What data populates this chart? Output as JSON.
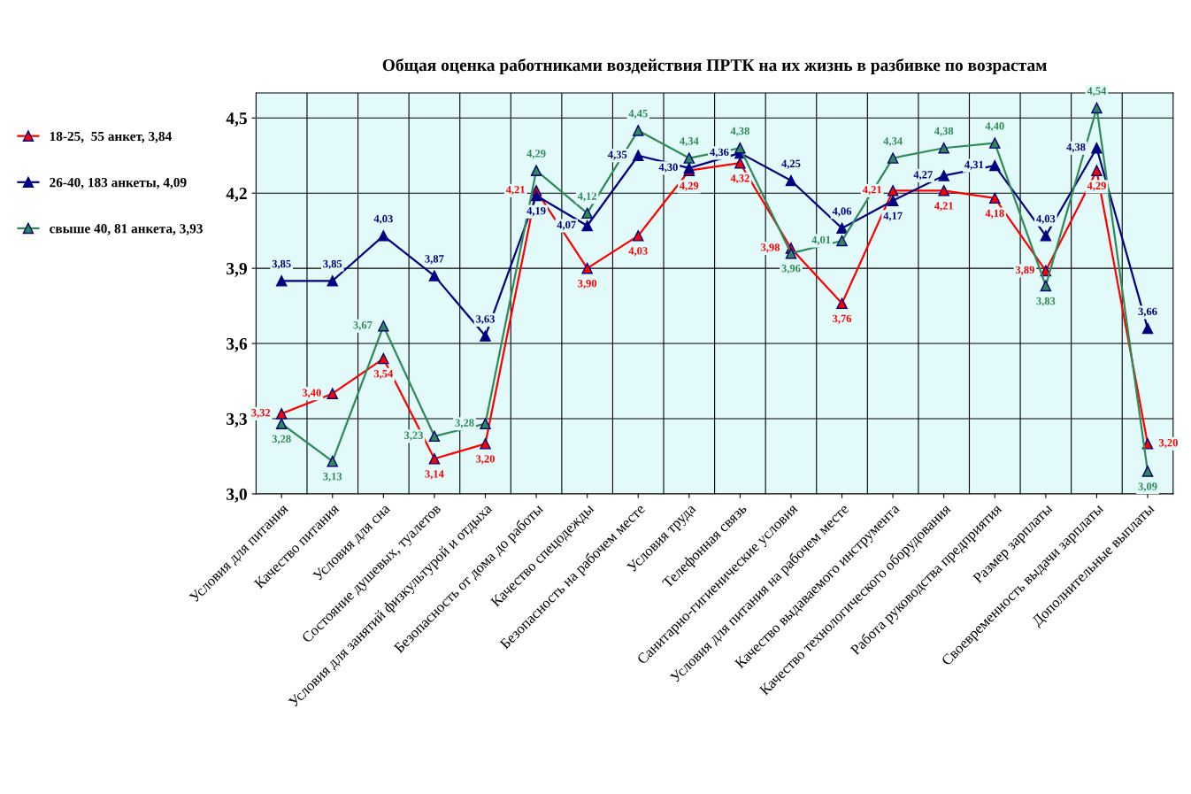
{
  "chart_data": {
    "type": "line",
    "title": "Общая оценка работниками воздействия ПРТК на их жизнь в разбивке по возрастам",
    "categories": [
      "Условия для питания",
      "Качество питания",
      "Условия для сна",
      "Состояние душевых, туалетов",
      "Условия для занятий физкультурой и отдыха",
      "Безопасность от дома до работы",
      "Качество спецодежды",
      "Безопасность на рабочем месте",
      "Условия труда",
      "Телефонная связь",
      "Санитарно-гигиенические условия",
      "Условия для питания на рабочем месте",
      "Качество выдаваемого инструмента",
      "Качество технологического оборудования",
      "Работа руководства предприятия",
      "Размер зарплаты",
      "Своевременность выдачи зарплаты",
      "Дополнительные выплаты"
    ],
    "series": [
      {
        "name": "18-25,  55 анкет, 3,84",
        "color": "#ff0000",
        "values": [
          3.32,
          3.4,
          3.54,
          3.14,
          3.2,
          4.21,
          3.9,
          4.03,
          4.29,
          4.32,
          3.98,
          3.76,
          4.21,
          4.21,
          4.18,
          3.89,
          4.29,
          3.2
        ],
        "value_labels": [
          "3,32",
          "3,40",
          "3,54",
          "3,14",
          "3,20",
          "4,21",
          "3,90",
          "4,03",
          "4,29",
          "4,32",
          "3,98",
          "3,76",
          "4,21",
          "4,21",
          "4,18",
          "3,89",
          "4,29",
          "3,20"
        ]
      },
      {
        "name": "26-40, 183 анкеты, 4,09",
        "color": "#000080",
        "values": [
          3.85,
          3.85,
          4.03,
          3.87,
          3.63,
          4.19,
          4.07,
          4.35,
          4.3,
          4.36,
          4.25,
          4.06,
          4.17,
          4.27,
          4.31,
          4.03,
          4.38,
          3.66
        ],
        "value_labels": [
          "3,85",
          "3,85",
          "4,03",
          "3,87",
          "3,63",
          "4,19",
          "4,07",
          "4,35",
          "4,30",
          "4,36",
          "4,25",
          "4,06",
          "4,17",
          "4,27",
          "4,31",
          "4,03",
          "4,38",
          "3,66"
        ]
      },
      {
        "name": "свыше 40, 81 анкета, 3,93",
        "color": "#2e8b57",
        "values": [
          3.28,
          3.13,
          3.67,
          3.23,
          3.28,
          4.29,
          4.12,
          4.45,
          4.34,
          4.38,
          3.96,
          4.01,
          4.34,
          4.38,
          4.4,
          3.83,
          4.54,
          3.09
        ],
        "value_labels": [
          "3,28",
          "3,13",
          "3,67",
          "3,23",
          "3,28",
          "4,29",
          "4,12",
          "4,45",
          "4,34",
          "4,38",
          "3,96",
          "4,01",
          "4,34",
          "4,38",
          "4,40",
          "3,83",
          "4,54",
          "3,09"
        ]
      }
    ],
    "ylim": [
      3.0,
      4.6
    ],
    "yticks": [
      {
        "value": 3.0,
        "label": "3,0"
      },
      {
        "value": 3.3,
        "label": "3,3"
      },
      {
        "value": 3.6,
        "label": "3,6"
      },
      {
        "value": 3.9,
        "label": "3,9"
      },
      {
        "value": 4.2,
        "label": "4,2"
      },
      {
        "value": 4.5,
        "label": "4,5"
      }
    ],
    "grid": true,
    "legend": "left",
    "marker": "triangle",
    "line_style": "solid"
  }
}
